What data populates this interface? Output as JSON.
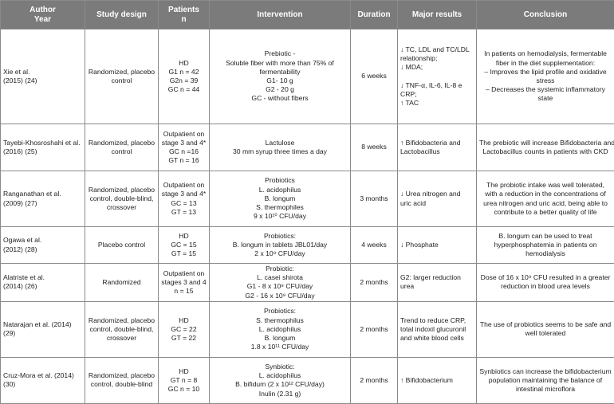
{
  "headers": {
    "author": [
      "Author",
      "Year"
    ],
    "design": [
      "Study design"
    ],
    "patients": [
      "Patients",
      "n"
    ],
    "intervention": [
      "Intervention"
    ],
    "duration": [
      "Duration"
    ],
    "results": [
      "Major results"
    ],
    "conclusion": [
      "Conclusion"
    ]
  },
  "rows": [
    {
      "author": [
        "Xie et al.",
        "(2015) (24)"
      ],
      "design": [
        "Randomized, placebo",
        "control"
      ],
      "patients": [
        "HD",
        "G1 n = 42",
        "G2n = 39",
        "GC n = 44"
      ],
      "intervention": [
        "Prebiotic -",
        "Soluble fiber with more than 75% of",
        "fermentability",
        "G1- 10 g",
        "G2 - 20 g",
        "GC - without fibers"
      ],
      "duration": "6 weeks",
      "results": [
        "↓ TC, LDL and TC/LDL",
        "relationship;",
        "↓ MDA;",
        "",
        "↓ TNF-α, IL-6, IL-8 e",
        "CRP;",
        "↑ TAC"
      ],
      "conclusion": [
        "In patients on hemodialysis, fermentable",
        "fiber in the diet supplementation:",
        "– Improves the lipid profile and oxidative",
        "stress",
        "– Decreases the systemic inflammatory",
        "state"
      ]
    },
    {
      "author": [
        "Tayebi-Khosroshahi et al.",
        "(2016) (25)"
      ],
      "design": [
        "Randomized, placebo",
        "control"
      ],
      "patients": [
        "Outpatient on",
        "stage 3 and 4*",
        "GC n =16",
        "GT n = 16"
      ],
      "intervention": [
        "Lactulose",
        "30 mm syrup three times a day"
      ],
      "duration": "8 weeks",
      "results": [
        "↑ Bifidobacteria and",
        "Lactobacillus"
      ],
      "conclusion": [
        "The prebiotic will increase Bifidobacteria and",
        "Lactobacillus counts in patients with CKD"
      ]
    },
    {
      "author": [
        "Ranganathan et al.",
        "(2009) (27)"
      ],
      "design": [
        "Randomized, placebo",
        "control, double-blind,",
        "crossover"
      ],
      "patients": [
        "Outpatient on",
        "stage 3 and 4*",
        "GC = 13",
        "GT = 13"
      ],
      "intervention": [
        "Probiotics",
        "L. acidophilus",
        "B. longum",
        "S. thermophiles",
        "9 x 10¹⁰ CFU/day"
      ],
      "duration": "3 months",
      "results": [
        "↓ Urea nitrogen and",
        "uric acid"
      ],
      "conclusion": [
        "The probiotic intake was well tolerated,",
        "with a reduction in the concentrations of",
        "urea nitrogen and uric acid, being able to",
        "contribute to a better quality of life"
      ]
    },
    {
      "author": [
        "Ogawa et al.",
        "(2012) (28)"
      ],
      "design": [
        "Placebo control"
      ],
      "patients": [
        "HD",
        "GC = 15",
        "GT = 15"
      ],
      "intervention": [
        "Probiotics:",
        "B. longum in tablets JBL01/day",
        "2 x 10⁹ CFU/day"
      ],
      "duration": "4 weeks",
      "results": [
        "↓ Phosphate"
      ],
      "conclusion": [
        "B. longum can be used to treat",
        "hyperphosphatemia in patients on",
        "hemodialysis"
      ]
    },
    {
      "author": [
        "Alatriste et al.",
        "(2014) (26)"
      ],
      "design": [
        "Randomized"
      ],
      "patients": [
        "Outpatient on",
        "stages 3 and 4",
        "n = 15"
      ],
      "intervention": [
        "Probiotic:",
        "L. casei shirota",
        "G1 - 8 x 10⁹ CFU/day",
        "G2 - 16 x 10⁹ CFU/day"
      ],
      "duration": "2 months",
      "results": [
        "G2: larger reduction",
        "urea"
      ],
      "conclusion": [
        "Dose of 16 x 10⁹ CFU resulted in a greater",
        "reduction in blood urea levels"
      ]
    },
    {
      "author": [
        "Natarajan et al. (2014)",
        "(29)"
      ],
      "design": [
        "Randomized, placebo",
        "control, double-blind,",
        "crossover"
      ],
      "patients": [
        "HD",
        "GC = 22",
        "GT = 22"
      ],
      "intervention": [
        "Probiotics:",
        "S. thermophilus",
        "L. acidophilus",
        "B. longum",
        "1.8 x 10¹¹ CFU/day"
      ],
      "duration": "2 months",
      "results": [
        "Trend to reduce CRP,",
        "total indoxil glucuronil",
        "and white blood cells"
      ],
      "conclusion": [
        "The use of probiotics seems to be safe and",
        "well tolerated"
      ]
    },
    {
      "author": [
        "Cruz-Mora et al. (2014)",
        "(30)"
      ],
      "design": [
        "Randomized, placebo",
        "control, double-blind"
      ],
      "patients": [
        "HD",
        "GT n = 8",
        "GC n = 10"
      ],
      "intervention": [
        "Synbiotic:",
        "L. acidophilus",
        "B. bifidum (2 x 10¹² CFU/day)",
        "Inulin (2.31 g)"
      ],
      "duration": "2 months",
      "results": [
        "↑ Bifidobacterium"
      ],
      "conclusion": [
        "Synbiotics can increase the bifidobacterium",
        "population maintaining the balance of",
        "intestinal microflora"
      ]
    }
  ]
}
